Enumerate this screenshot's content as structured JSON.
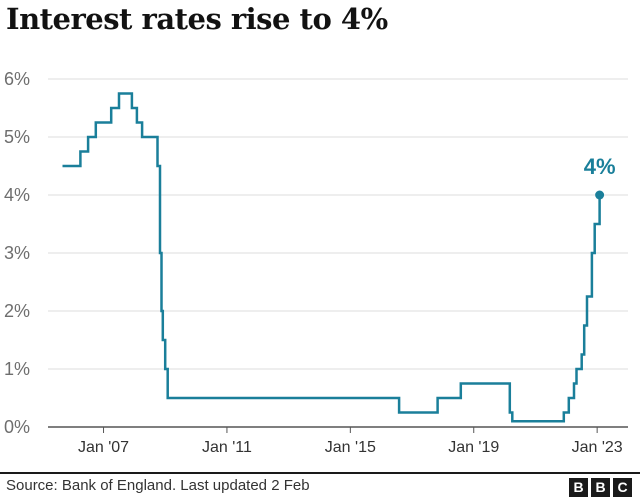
{
  "title": "Interest rates rise to 4%",
  "source": "Source: Bank of England. Last updated 2 Feb",
  "logo": {
    "letters": [
      "B",
      "B",
      "C"
    ],
    "label": "BBC"
  },
  "colors": {
    "line": "#1a7f9a",
    "grid": "#dddddd",
    "axis": "#555555"
  },
  "chart_data": {
    "type": "line",
    "title": "Interest rates rise to 4%",
    "xlabel": "",
    "ylabel": "",
    "ylim": [
      0,
      6
    ],
    "xlim": [
      2005.2,
      2024.0
    ],
    "y_ticks": [
      0,
      1,
      2,
      3,
      4,
      5,
      6
    ],
    "y_tick_labels": [
      "0%",
      "1%",
      "2%",
      "3%",
      "4%",
      "5%",
      "6%"
    ],
    "x_ticks": [
      2007,
      2011,
      2015,
      2019,
      2023
    ],
    "x_tick_labels": [
      "Jan '07",
      "Jan '11",
      "Jan '15",
      "Jan '19",
      "Jan '23"
    ],
    "grid": true,
    "step": true,
    "annotation": {
      "text": "4%",
      "x": 2023.08,
      "y": 4.0
    },
    "series": [
      {
        "x": [
          2005.67,
          2006.25,
          2006.5,
          2006.75,
          2007.0,
          2007.25,
          2007.5,
          2007.92,
          2008.08,
          2008.25,
          2008.75,
          2008.83,
          2008.88,
          2008.92,
          2009.0,
          2009.08,
          2009.17,
          2016.58,
          2017.83,
          2018.58,
          2020.17,
          2020.25,
          2021.92,
          2022.08,
          2022.25,
          2022.33,
          2022.5,
          2022.58,
          2022.67,
          2022.83,
          2022.92,
          2023.08
        ],
        "y": [
          4.5,
          4.75,
          5.0,
          5.25,
          5.25,
          5.5,
          5.75,
          5.5,
          5.25,
          5.0,
          4.5,
          3.0,
          2.0,
          1.5,
          1.0,
          0.5,
          0.5,
          0.25,
          0.5,
          0.75,
          0.25,
          0.1,
          0.25,
          0.5,
          0.75,
          1.0,
          1.25,
          1.75,
          2.25,
          3.0,
          3.5,
          4.0
        ]
      }
    ]
  }
}
